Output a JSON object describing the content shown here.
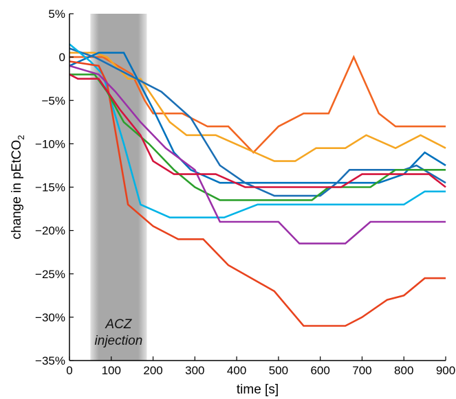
{
  "chart_data": {
    "type": "line",
    "title": "",
    "xlabel": "time [s]",
    "ylabel": "change in pEtCO",
    "ylabel_sub": "2",
    "xlim": [
      0,
      900
    ],
    "ylim": [
      -35,
      5
    ],
    "x_ticks": [
      0,
      100,
      200,
      300,
      400,
      500,
      600,
      700,
      800,
      900
    ],
    "x_tick_labels": [
      "0",
      "100",
      "200",
      "300",
      "400",
      "500",
      "600",
      "700",
      "800",
      "900"
    ],
    "y_ticks": [
      5,
      0,
      -5,
      -10,
      -15,
      -20,
      -25,
      -30,
      -35
    ],
    "y_tick_labels": [
      "5%",
      "0",
      "−5%",
      "−10%",
      "−15%",
      "−20%",
      "−25%",
      "−30%",
      "−35%"
    ],
    "grid": false,
    "annotation": {
      "lines": [
        "ACZ",
        "injection"
      ],
      "x_range": [
        50,
        185
      ]
    },
    "series": [
      {
        "color": "#f26522",
        "points": [
          [
            0,
            0
          ],
          [
            80,
            0
          ],
          [
            150,
            -2
          ],
          [
            180,
            -5
          ],
          [
            200,
            -6.5
          ],
          [
            270,
            -6.5
          ],
          [
            330,
            -8
          ],
          [
            380,
            -8
          ],
          [
            440,
            -11
          ],
          [
            500,
            -8
          ],
          [
            560,
            -6.5
          ],
          [
            620,
            -6.5
          ],
          [
            680,
            0
          ],
          [
            740,
            -6.5
          ],
          [
            780,
            -8
          ],
          [
            900,
            -8
          ]
        ]
      },
      {
        "color": "#f5a623",
        "points": [
          [
            0,
            0.5
          ],
          [
            60,
            0.5
          ],
          [
            90,
            0
          ],
          [
            140,
            -2.5
          ],
          [
            170,
            -2.5
          ],
          [
            240,
            -7.5
          ],
          [
            280,
            -9
          ],
          [
            350,
            -9
          ],
          [
            420,
            -10.5
          ],
          [
            490,
            -12
          ],
          [
            540,
            -12
          ],
          [
            590,
            -10.5
          ],
          [
            660,
            -10.5
          ],
          [
            710,
            -9
          ],
          [
            780,
            -10.5
          ],
          [
            840,
            -9
          ],
          [
            900,
            -10.5
          ]
        ]
      },
      {
        "color": "#0072bd",
        "points": [
          [
            0,
            -1
          ],
          [
            70,
            0.5
          ],
          [
            110,
            0.5
          ],
          [
            130,
            0.5
          ],
          [
            200,
            -6
          ],
          [
            250,
            -11
          ],
          [
            290,
            -13
          ],
          [
            360,
            -14.5
          ],
          [
            420,
            -14.5
          ],
          [
            480,
            -14.5
          ],
          [
            540,
            -14.5
          ],
          [
            600,
            -14.5
          ],
          [
            650,
            -14.5
          ],
          [
            740,
            -14.5
          ],
          [
            800,
            -13.5
          ],
          [
            850,
            -11
          ],
          [
            900,
            -12.5
          ]
        ]
      },
      {
        "color": "#1a6fb5",
        "points": [
          [
            0,
            1
          ],
          [
            60,
            0
          ],
          [
            140,
            -2
          ],
          [
            220,
            -4
          ],
          [
            290,
            -7
          ],
          [
            360,
            -12.5
          ],
          [
            420,
            -14.5
          ],
          [
            490,
            -16
          ],
          [
            600,
            -16
          ],
          [
            640,
            -14.5
          ],
          [
            670,
            -13
          ],
          [
            800,
            -13
          ],
          [
            830,
            -12.5
          ],
          [
            900,
            -14.5
          ]
        ]
      },
      {
        "color": "#00b3e6",
        "points": [
          [
            0,
            1.5
          ],
          [
            50,
            -0.5
          ],
          [
            80,
            -2
          ],
          [
            130,
            -10
          ],
          [
            170,
            -17
          ],
          [
            240,
            -18.5
          ],
          [
            370,
            -18.5
          ],
          [
            450,
            -17
          ],
          [
            500,
            -17
          ],
          [
            720,
            -17
          ],
          [
            800,
            -17
          ],
          [
            850,
            -15.5
          ],
          [
            900,
            -15.5
          ]
        ]
      },
      {
        "color": "#e8431e",
        "points": [
          [
            0,
            -0.5
          ],
          [
            70,
            -1
          ],
          [
            90,
            -3
          ],
          [
            140,
            -17
          ],
          [
            200,
            -19.5
          ],
          [
            260,
            -21
          ],
          [
            320,
            -21
          ],
          [
            380,
            -24
          ],
          [
            490,
            -27
          ],
          [
            560,
            -31
          ],
          [
            600,
            -31
          ],
          [
            660,
            -31
          ],
          [
            700,
            -30
          ],
          [
            760,
            -28
          ],
          [
            800,
            -27.5
          ],
          [
            850,
            -25.5
          ],
          [
            900,
            -25.5
          ]
        ]
      },
      {
        "color": "#2ca02c",
        "points": [
          [
            0,
            -2
          ],
          [
            60,
            -2
          ],
          [
            90,
            -4
          ],
          [
            130,
            -7.5
          ],
          [
            190,
            -10
          ],
          [
            250,
            -13
          ],
          [
            300,
            -15
          ],
          [
            360,
            -16.5
          ],
          [
            440,
            -16.5
          ],
          [
            500,
            -16.5
          ],
          [
            580,
            -16.5
          ],
          [
            620,
            -15
          ],
          [
            720,
            -15
          ],
          [
            780,
            -13
          ],
          [
            900,
            -13
          ]
        ]
      },
      {
        "color": "#9b30a8",
        "points": [
          [
            0,
            -1
          ],
          [
            70,
            -2
          ],
          [
            110,
            -4
          ],
          [
            170,
            -7.5
          ],
          [
            230,
            -10.5
          ],
          [
            300,
            -13
          ],
          [
            360,
            -19
          ],
          [
            440,
            -19
          ],
          [
            500,
            -19
          ],
          [
            550,
            -21.5
          ],
          [
            660,
            -21.5
          ],
          [
            720,
            -19
          ],
          [
            800,
            -19
          ],
          [
            900,
            -19
          ]
        ]
      },
      {
        "color": "#d4143c",
        "points": [
          [
            0,
            -2
          ],
          [
            20,
            -2.5
          ],
          [
            70,
            -2.5
          ],
          [
            120,
            -6
          ],
          [
            170,
            -9
          ],
          [
            200,
            -12
          ],
          [
            250,
            -13.5
          ],
          [
            350,
            -13.5
          ],
          [
            420,
            -15
          ],
          [
            500,
            -15
          ],
          [
            600,
            -15
          ],
          [
            650,
            -15
          ],
          [
            700,
            -13.5
          ],
          [
            800,
            -13.5
          ],
          [
            860,
            -13.5
          ],
          [
            900,
            -15
          ]
        ]
      }
    ]
  }
}
